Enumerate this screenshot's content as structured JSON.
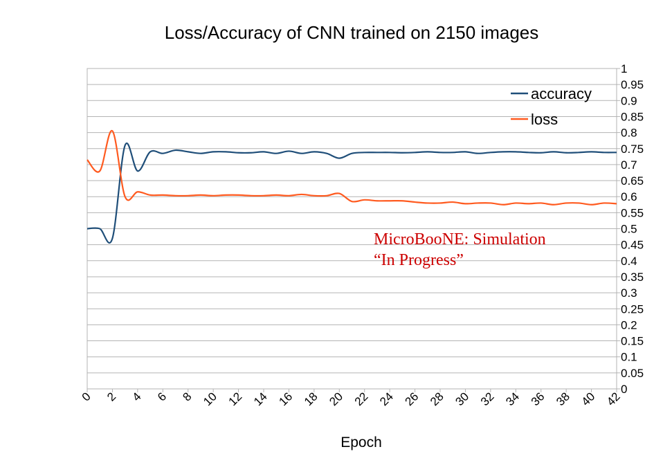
{
  "chart_data": {
    "type": "line",
    "title": "Loss/Accuracy of CNN trained on 2150 images",
    "xlabel": "Epoch",
    "ylabel": "",
    "xlim": [
      0,
      42
    ],
    "ylim": [
      0,
      1
    ],
    "x_ticks": [
      "0",
      "2",
      "4",
      "6",
      "8",
      "10",
      "12",
      "14",
      "16",
      "18",
      "20",
      "22",
      "24",
      "26",
      "28",
      "30",
      "32",
      "34",
      "36",
      "38",
      "40",
      "42"
    ],
    "y_ticks": [
      "0",
      "0.05",
      "0.1",
      "0.15",
      "0.2",
      "0.25",
      "0.3",
      "0.35",
      "0.4",
      "0.45",
      "0.5",
      "0.55",
      "0.6",
      "0.65",
      "0.7",
      "0.75",
      "0.8",
      "0.85",
      "0.9",
      "0.95",
      "1"
    ],
    "grid": "horizontal",
    "legend_position": "top-right",
    "x": [
      0,
      1,
      2,
      3,
      4,
      5,
      6,
      7,
      8,
      9,
      10,
      11,
      12,
      13,
      14,
      15,
      16,
      17,
      18,
      19,
      20,
      21,
      22,
      23,
      24,
      25,
      26,
      27,
      28,
      29,
      30,
      31,
      32,
      33,
      34,
      35,
      36,
      37,
      38,
      39,
      40,
      41,
      42
    ],
    "series": [
      {
        "name": "accuracy",
        "color": "#1f4e79",
        "values": [
          0.5,
          0.5,
          0.47,
          0.76,
          0.68,
          0.74,
          0.735,
          0.745,
          0.74,
          0.735,
          0.74,
          0.74,
          0.737,
          0.737,
          0.74,
          0.735,
          0.742,
          0.735,
          0.74,
          0.735,
          0.72,
          0.735,
          0.738,
          0.738,
          0.738,
          0.737,
          0.738,
          0.74,
          0.738,
          0.738,
          0.74,
          0.735,
          0.738,
          0.74,
          0.74,
          0.738,
          0.737,
          0.74,
          0.737,
          0.738,
          0.74,
          0.738,
          0.738
        ]
      },
      {
        "name": "loss",
        "color": "#ff5a1f",
        "values": [
          0.715,
          0.68,
          0.805,
          0.6,
          0.615,
          0.605,
          0.605,
          0.603,
          0.603,
          0.605,
          0.603,
          0.605,
          0.605,
          0.603,
          0.603,
          0.605,
          0.603,
          0.607,
          0.603,
          0.603,
          0.61,
          0.585,
          0.59,
          0.587,
          0.587,
          0.587,
          0.583,
          0.58,
          0.58,
          0.583,
          0.578,
          0.58,
          0.58,
          0.575,
          0.58,
          0.578,
          0.58,
          0.575,
          0.58,
          0.58,
          0.575,
          0.58,
          0.578
        ]
      }
    ],
    "annotation": {
      "line1": "MicroBooNE: Simulation",
      "line2": "“In Progress”",
      "color": "#cc0000"
    }
  }
}
